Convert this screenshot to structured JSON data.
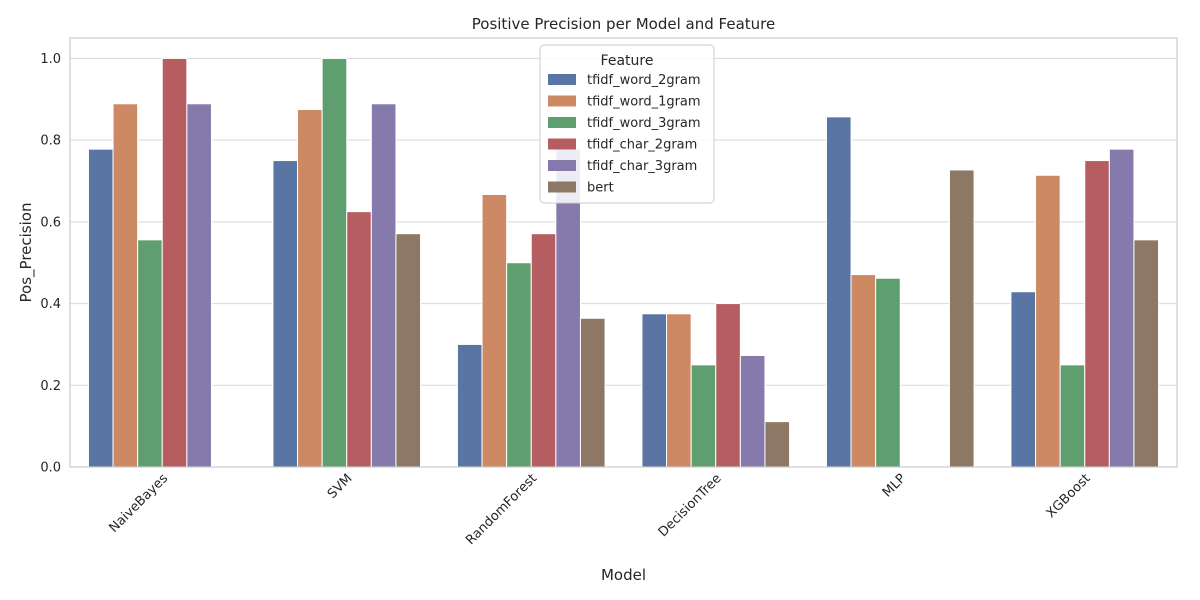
{
  "chart_data": {
    "type": "bar",
    "title": "Positive Precision per Model and Feature",
    "xlabel": "Model",
    "ylabel": "Pos_Precision",
    "ylim": [
      0,
      1.05
    ],
    "yticks": [
      0.0,
      0.2,
      0.4,
      0.6,
      0.8,
      1.0
    ],
    "ytick_labels": [
      "0.0",
      "0.2",
      "0.4",
      "0.6",
      "0.8",
      "1.0"
    ],
    "grid": true,
    "legend": {
      "title": "Feature",
      "placement": "top-center"
    },
    "categories": [
      "NaiveBayes",
      "SVM",
      "RandomForest",
      "DecisionTree",
      "MLP",
      "XGBoost"
    ],
    "series": [
      {
        "name": "tfidf_word_2gram",
        "color": "#5875a4",
        "values": [
          0.778,
          0.75,
          0.3,
          0.375,
          0.857,
          0.429
        ]
      },
      {
        "name": "tfidf_word_1gram",
        "color": "#cc8963",
        "values": [
          0.889,
          0.875,
          0.667,
          0.375,
          0.471,
          0.714
        ]
      },
      {
        "name": "tfidf_word_3gram",
        "color": "#5f9e6e",
        "values": [
          0.556,
          1.0,
          0.5,
          0.25,
          0.462,
          0.25
        ]
      },
      {
        "name": "tfidf_char_2gram",
        "color": "#b55d60",
        "values": [
          1.0,
          0.625,
          0.571,
          0.4,
          0.0,
          0.75
        ]
      },
      {
        "name": "tfidf_char_3gram",
        "color": "#857aab",
        "values": [
          0.889,
          0.889,
          0.778,
          0.273,
          0.0,
          0.778
        ]
      },
      {
        "name": "bert",
        "color": "#8d7866",
        "values": [
          0.0,
          0.571,
          0.364,
          0.111,
          0.727,
          0.556
        ]
      }
    ]
  }
}
